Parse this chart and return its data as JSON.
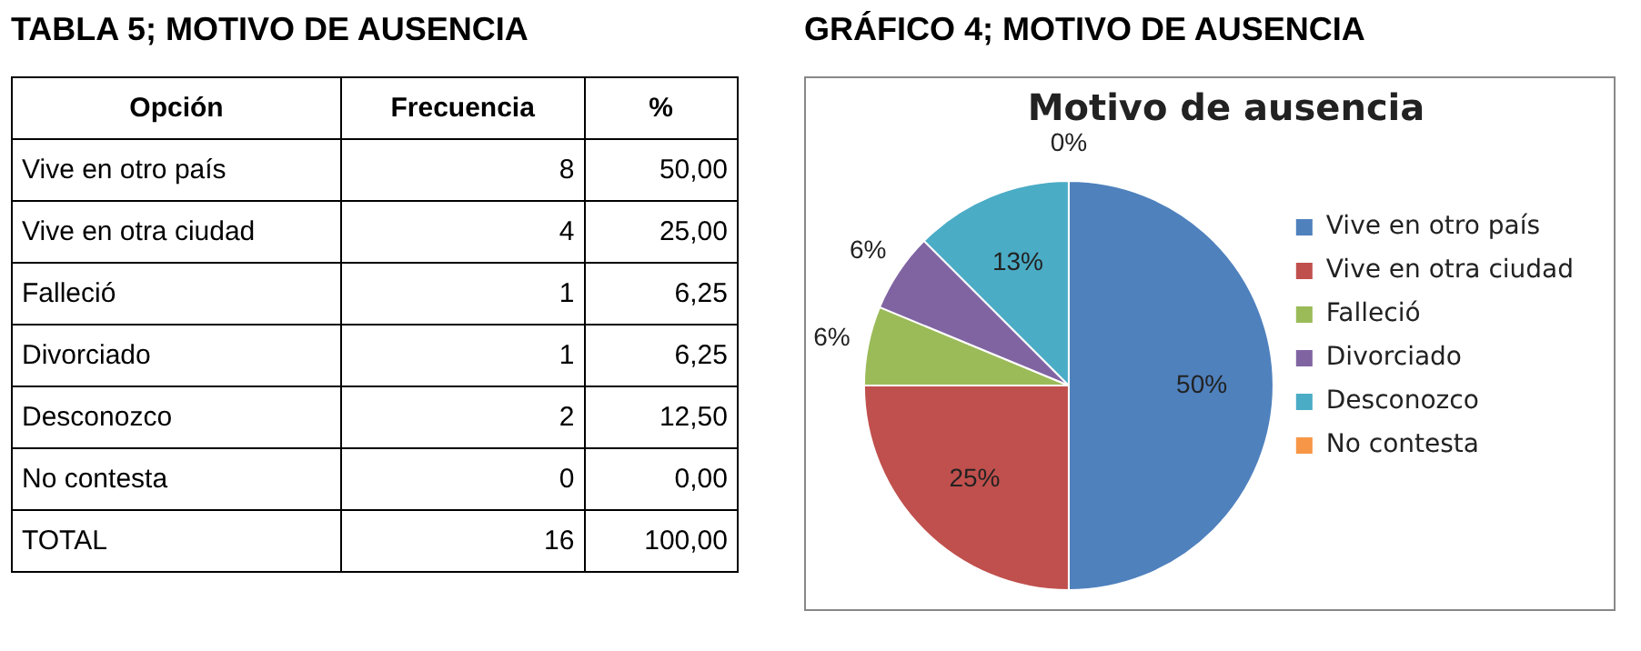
{
  "chart_data": [
    {
      "type": "other",
      "title": "TABLA 5; MOTIVO DE AUSENCIA",
      "annotations": [
        "Opción",
        "Frecuencia",
        "%",
        "Vive en otro país",
        "8",
        "50,00",
        "Vive en otra ciudad",
        "4",
        "25,00",
        "Falleció",
        "1",
        "6,25",
        "Divorciado",
        "1",
        "6,25",
        "Desconozco",
        "2",
        "12,50",
        "No contesta",
        "0",
        "0,00",
        "TOTAL",
        "16",
        "100,00"
      ]
    },
    {
      "type": "pie",
      "title": "Motivo de ausencia",
      "annotations": [
        "GRÁFICO 4; MOTIVO DE AUSENCIA"
      ],
      "categories": [
        "Vive en otro país",
        "Vive en otra ciudad",
        "Falleció",
        "Divorciado",
        "Desconozco",
        "No contesta"
      ],
      "values": [
        50,
        25,
        6.25,
        6.25,
        12.5,
        0
      ],
      "value_labels": [
        "50%",
        "25%",
        "6%",
        "6%",
        "13%",
        "0%"
      ],
      "colors": [
        "#4f81bd",
        "#c0504d",
        "#9bbb59",
        "#8064a2",
        "#4bacc6",
        "#f79646"
      ],
      "legend": "right"
    }
  ]
}
